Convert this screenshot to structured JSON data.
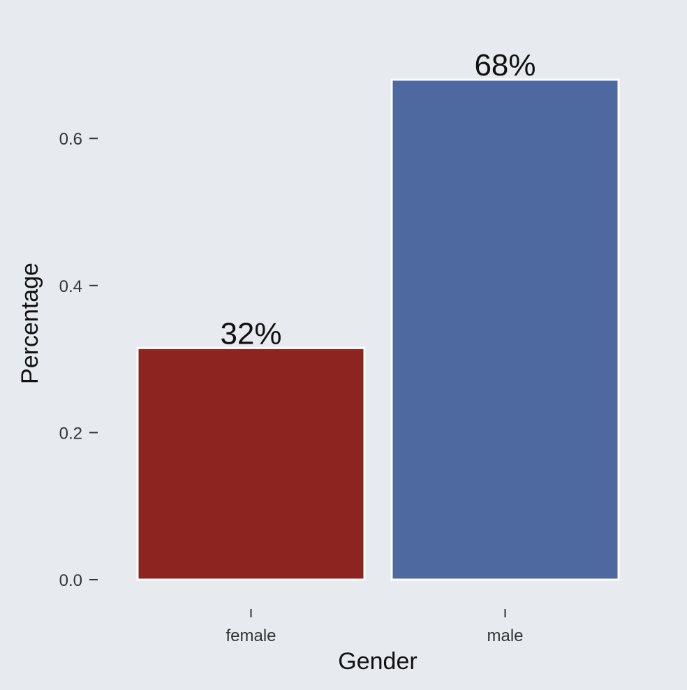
{
  "chart_data": {
    "type": "bar",
    "categories": [
      "female",
      "male"
    ],
    "values": [
      0.315,
      0.68
    ],
    "data_labels": [
      "32%",
      "68%"
    ],
    "colors": [
      "#8e2420",
      "#4e68a0"
    ],
    "title": "",
    "xlabel": "Gender",
    "ylabel": "Percentage",
    "ylim": [
      0,
      0.68
    ],
    "yticks": [
      0.0,
      0.2,
      0.4,
      0.6
    ],
    "ytick_labels": [
      "0.0",
      "0.2",
      "0.4",
      "0.6"
    ],
    "grid": false,
    "background": "#e7eaef"
  }
}
